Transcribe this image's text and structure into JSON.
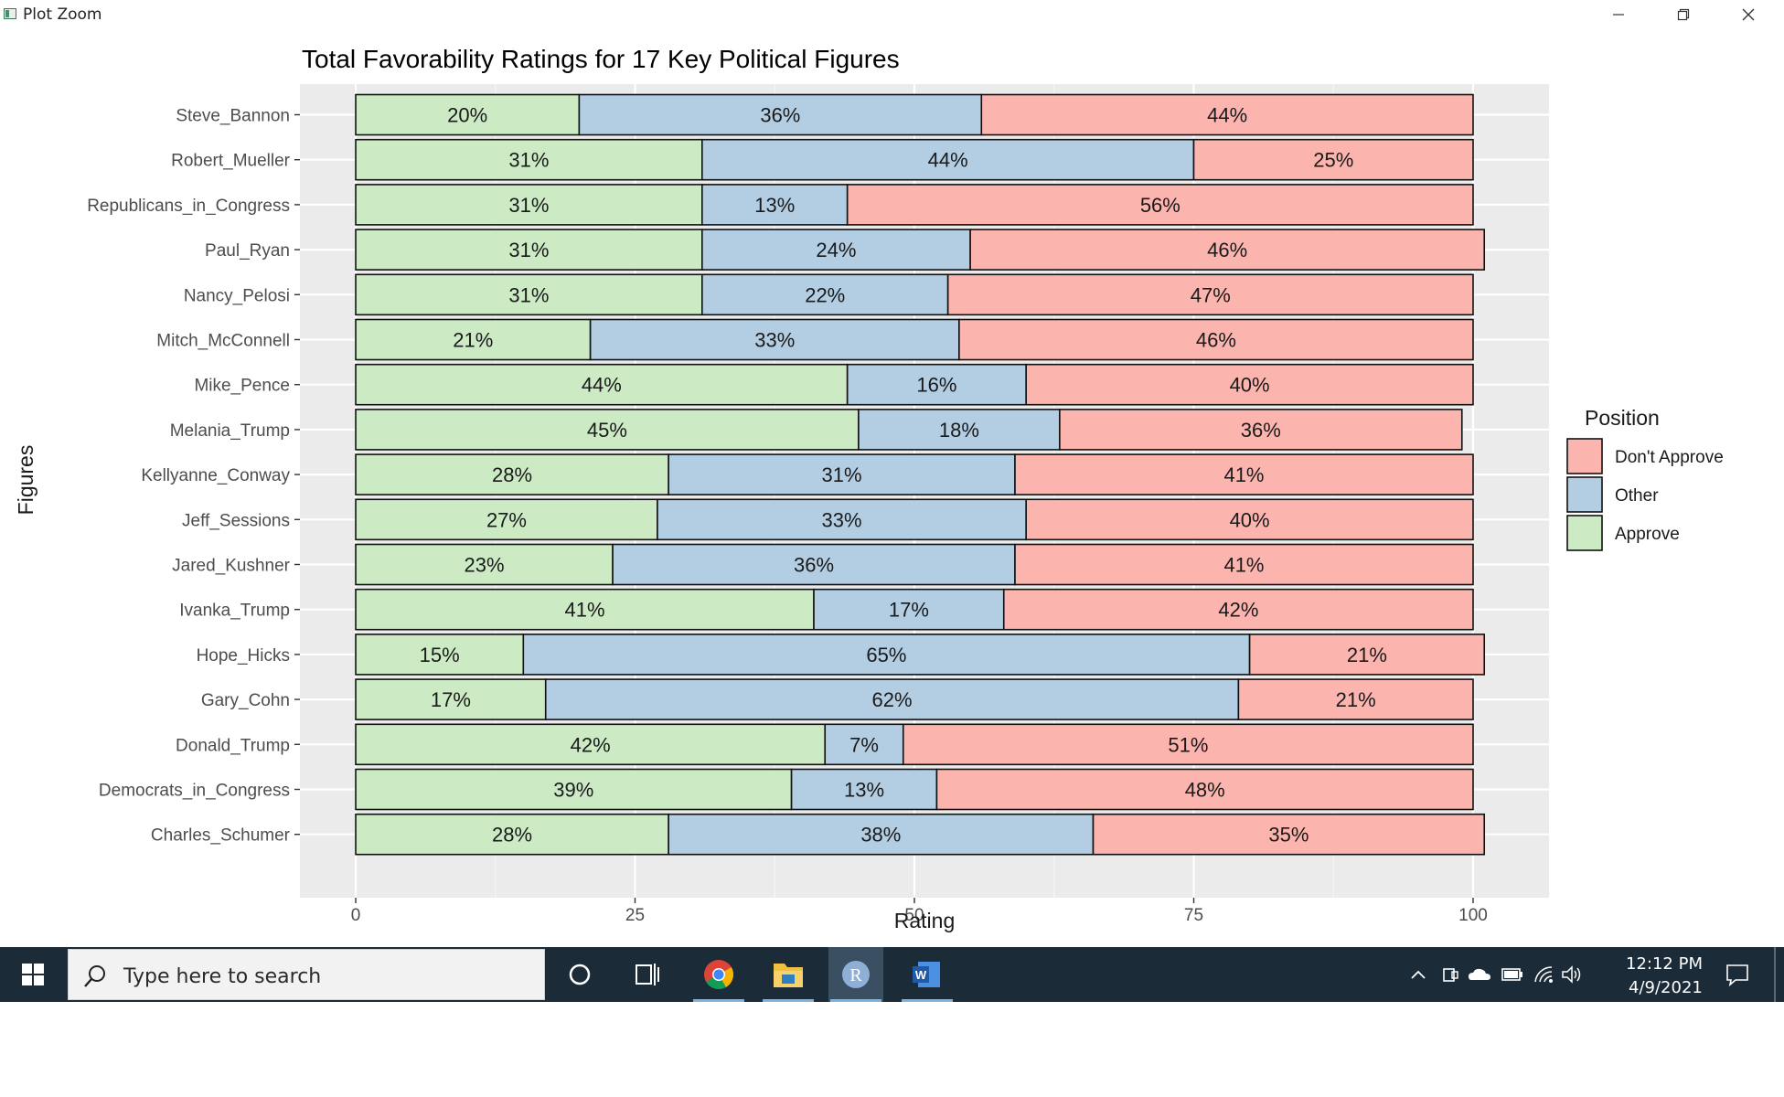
{
  "window": {
    "title": "Plot Zoom"
  },
  "chart_data": {
    "type": "bar",
    "orientation": "horizontal",
    "stacked": true,
    "title": "Total Favorability Ratings for 17 Key Political Figures",
    "xlabel": "Rating",
    "ylabel": "Figures",
    "xlim": [
      0,
      100
    ],
    "xticks": [
      "0",
      "25",
      "50",
      "75",
      "100"
    ],
    "grid": true,
    "legend": {
      "title": "Position",
      "placement": "right",
      "entries": [
        "Don't Approve",
        "Other",
        "Approve"
      ]
    },
    "categories": [
      "Steve_Bannon",
      "Robert_Mueller",
      "Republicans_in_Congress",
      "Paul_Ryan",
      "Nancy_Pelosi",
      "Mitch_McConnell",
      "Mike_Pence",
      "Melania_Trump",
      "Kellyanne_Conway",
      "Jeff_Sessions",
      "Jared_Kushner",
      "Ivanka_Trump",
      "Hope_Hicks",
      "Gary_Cohn",
      "Donald_Trump",
      "Democrats_in_Congress",
      "Charles_Schumer"
    ],
    "series": [
      {
        "name": "Approve",
        "color": "#ccebc5",
        "values": [
          20,
          31,
          31,
          31,
          31,
          21,
          44,
          45,
          28,
          27,
          23,
          41,
          15,
          17,
          42,
          39,
          28
        ],
        "labels": [
          "20%",
          "31%",
          "31%",
          "31%",
          "31%",
          "21%",
          "44%",
          "45%",
          "28%",
          "27%",
          "23%",
          "41%",
          "15%",
          "17%",
          "42%",
          "39%",
          "28%"
        ]
      },
      {
        "name": "Other",
        "color": "#b3cde3",
        "values": [
          36,
          44,
          13,
          24,
          22,
          33,
          16,
          18,
          31,
          33,
          36,
          17,
          65,
          62,
          7,
          13,
          38
        ],
        "labels": [
          "36%",
          "44%",
          "13%",
          "24%",
          "22%",
          "33%",
          "16%",
          "18%",
          "31%",
          "33%",
          "36%",
          "17%",
          "65%",
          "62%",
          "7%",
          "13%",
          "38%"
        ]
      },
      {
        "name": "Don't Approve",
        "color": "#fbb4ae",
        "values": [
          44,
          25,
          56,
          46,
          47,
          46,
          40,
          36,
          41,
          40,
          41,
          42,
          21,
          21,
          51,
          48,
          35
        ],
        "labels": [
          "44%",
          "25%",
          "56%",
          "46%",
          "47%",
          "46%",
          "40%",
          "36%",
          "41%",
          "40%",
          "41%",
          "42%",
          "21%",
          "21%",
          "51%",
          "48%",
          "35%"
        ]
      }
    ]
  },
  "taskbar": {
    "search_placeholder": "Type here to search",
    "r_icon_letter": "R",
    "word_icon_letter": "W",
    "clock_time": "12:12 PM",
    "clock_date": "4/9/2021"
  }
}
